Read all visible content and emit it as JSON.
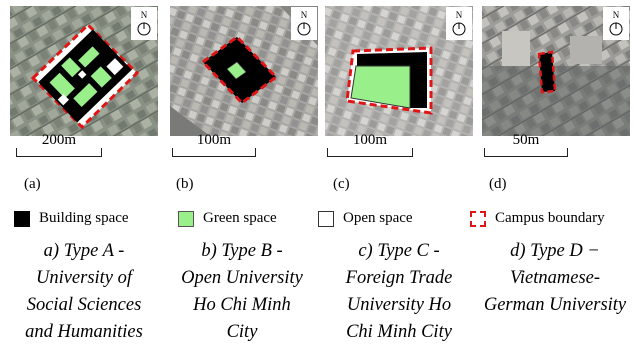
{
  "compass_label": "N",
  "panels": [
    {
      "scale": "200m",
      "letter": "(a)"
    },
    {
      "scale": "100m",
      "letter": "(b)"
    },
    {
      "scale": "100m",
      "letter": "(c)"
    },
    {
      "scale": "50m",
      "letter": "(d)"
    }
  ],
  "legend": {
    "building": "Building space",
    "green": "Green space",
    "open": "Open space",
    "boundary": "Campus boundary"
  },
  "colors": {
    "building": "#000000",
    "green": "#99f08a",
    "open": "#ffffff",
    "boundary": "#e01616"
  },
  "captions": [
    {
      "lines": [
        "a) Type A -",
        "University of",
        "Social Sciences",
        "and Humanities"
      ]
    },
    {
      "lines": [
        "b) Type B -",
        "Open University",
        "Ho Chi Minh",
        "City"
      ]
    },
    {
      "lines": [
        "c) Type C -",
        "Foreign Trade",
        "University Ho",
        "Chi Minh City"
      ]
    },
    {
      "lines": [
        "d) Type D −",
        "Vietnamese-",
        "German University"
      ]
    }
  ]
}
